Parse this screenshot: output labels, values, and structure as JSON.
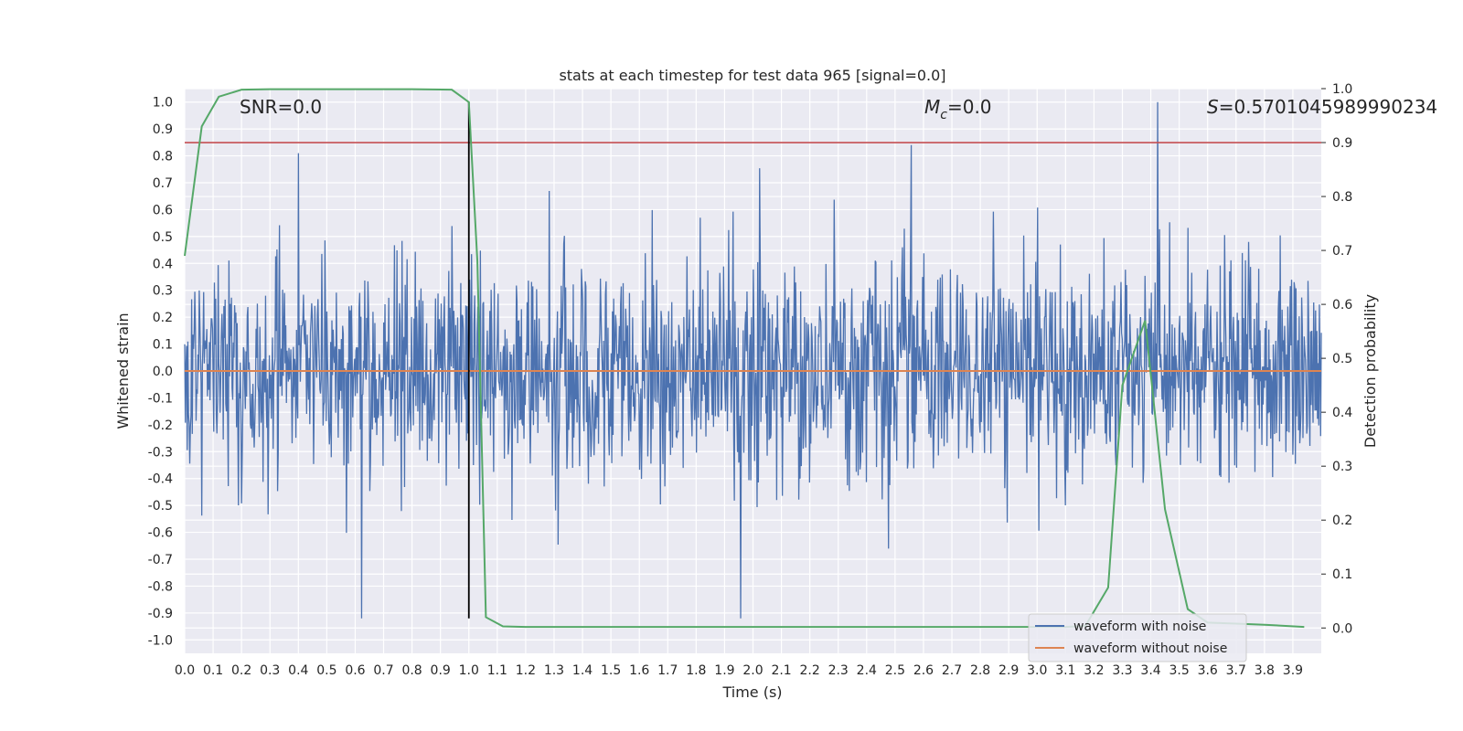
{
  "chart_data": {
    "type": "line",
    "title": "stats at each timestep for test data 965 [signal=0.0]",
    "xlabel": "Time (s)",
    "ylabel": "Whitened strain",
    "y2label": "Detection probability",
    "xlim": [
      0.0,
      4.0
    ],
    "ylim": [
      -1.05,
      1.05
    ],
    "y2lim": [
      -0.047,
      1.0
    ],
    "grid": true,
    "legend_position": "lower-right",
    "x_ticks": [
      "0.0",
      "0.1",
      "0.2",
      "0.3",
      "0.4",
      "0.5",
      "0.6",
      "0.7",
      "0.8",
      "0.9",
      "1.0",
      "1.1",
      "1.2",
      "1.3",
      "1.4",
      "1.5",
      "1.6",
      "1.7",
      "1.8",
      "1.9",
      "2.0",
      "2.1",
      "2.2",
      "2.3",
      "2.4",
      "2.5",
      "2.6",
      "2.7",
      "2.8",
      "2.9",
      "3.0",
      "3.1",
      "3.2",
      "3.3",
      "3.4",
      "3.5",
      "3.6",
      "3.7",
      "3.8",
      "3.9"
    ],
    "y_ticks": [
      "1.0",
      "0.9",
      "0.8",
      "0.7",
      "0.6",
      "0.5",
      "0.4",
      "0.3",
      "0.2",
      "0.1",
      "0.0",
      "-0.1",
      "-0.2",
      "-0.3",
      "-0.4",
      "-0.5",
      "-0.6",
      "-0.7",
      "-0.8",
      "-0.9",
      "-1.0"
    ],
    "y2_ticks": [
      "1.0",
      "0.9",
      "0.8",
      "0.7",
      "0.6",
      "0.5",
      "0.4",
      "0.3",
      "0.2",
      "0.1",
      "0.0"
    ],
    "annotations": {
      "snr": "SNR=0.0",
      "mc_symbol": "M",
      "mc_sub": "c",
      "mc_value": "=0.0",
      "s_symbol": "S",
      "s_value": "=0.5701045989990234"
    },
    "series": [
      {
        "name": "waveform with noise",
        "color": "#4c72b0",
        "noise_amplitude": 0.6,
        "peak_values": [
          0.81,
          0.84,
          1.0,
          -0.92,
          -0.92
        ]
      },
      {
        "name": "waveform without noise",
        "color": "#dd8452",
        "values": [
          0.0,
          0.0
        ]
      },
      {
        "color": "#55a868",
        "axis": "y2",
        "x": [
          0.0,
          0.06,
          0.12,
          0.2,
          0.3,
          0.5,
          0.7,
          0.8,
          0.94,
          1.0,
          1.03,
          1.06,
          1.12,
          1.2,
          1.5,
          2.0,
          2.5,
          3.0,
          3.1,
          3.17,
          3.25,
          3.3,
          3.38,
          3.45,
          3.53,
          3.6,
          3.7,
          3.8,
          3.94
        ],
        "values": [
          0.69,
          0.93,
          0.985,
          0.998,
          0.999,
          0.999,
          0.999,
          0.999,
          0.998,
          0.975,
          0.68,
          0.02,
          0.003,
          0.002,
          0.002,
          0.002,
          0.002,
          0.002,
          0.002,
          0.004,
          0.075,
          0.45,
          0.57,
          0.22,
          0.035,
          0.01,
          0.008,
          0.006,
          0.002
        ]
      },
      {
        "color": "#c44e52",
        "axis": "y2",
        "values": [
          0.9,
          0.9
        ]
      }
    ],
    "vertical_line": {
      "x": 1.0,
      "color": "#000000",
      "y_from": -0.92,
      "y_to": 1.0
    }
  }
}
